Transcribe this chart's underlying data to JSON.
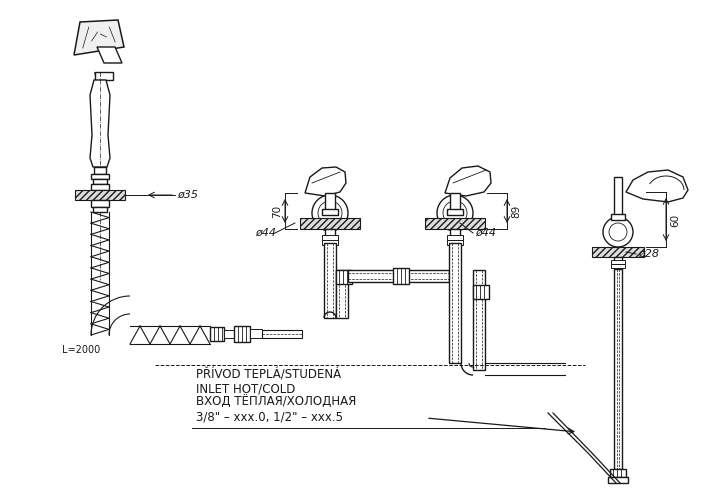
{
  "bg_color": "#ffffff",
  "line_color": "#1a1a1a",
  "fig_width": 7.21,
  "fig_height": 4.97,
  "dpi": 100,
  "texts": {
    "d35": "ø35",
    "d44_left": "ø44",
    "d44_right": "ø44",
    "d28": "ø28",
    "dim70": "70",
    "dim89": "89",
    "dim60": "60",
    "l2000": "L=2000",
    "line1": "PŘÍVOD TEPLÁ/STUDENÁ",
    "line2": "INLET HOT/COLD",
    "line3": "ВХОД ТЁПЛАЯ/ХОЛОДНАЯ",
    "line4": "3/8\" – xxx.0, 1/2\" – xxx.5"
  }
}
